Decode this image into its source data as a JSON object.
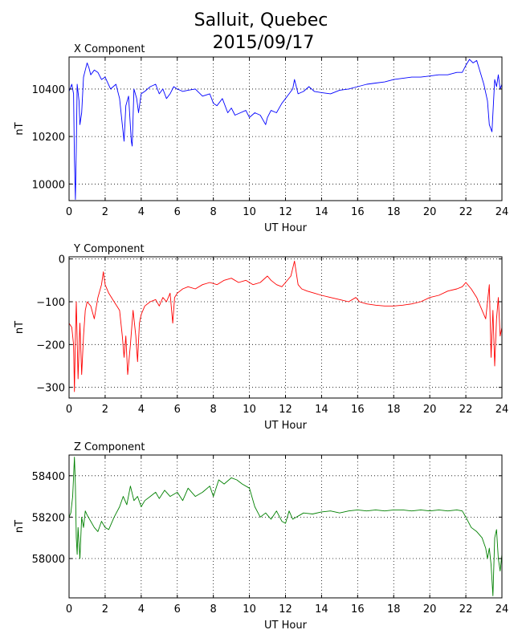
{
  "title_line1": "Salluit, Quebec",
  "title_line2": "2015/09/17",
  "chart_data": [
    {
      "type": "line",
      "title": "X Component",
      "xlabel": "UT Hour",
      "ylabel": "nT",
      "color": "#0000ff",
      "xlim": [
        0,
        24
      ],
      "ylim": [
        9930,
        10535
      ],
      "xticks": [
        0,
        2,
        4,
        6,
        8,
        10,
        12,
        14,
        16,
        18,
        20,
        22,
        24
      ],
      "yticks": [
        10000,
        10200,
        10400
      ],
      "grid": true,
      "x": [
        0,
        0.15,
        0.25,
        0.3,
        0.35,
        0.4,
        0.45,
        0.55,
        0.6,
        0.7,
        0.8,
        0.9,
        1.0,
        1.1,
        1.2,
        1.4,
        1.6,
        1.8,
        2.0,
        2.3,
        2.6,
        2.8,
        2.95,
        3.05,
        3.15,
        3.3,
        3.45,
        3.5,
        3.6,
        3.75,
        3.85,
        4.0,
        4.2,
        4.5,
        4.8,
        5.0,
        5.2,
        5.4,
        5.6,
        5.8,
        6.0,
        6.3,
        6.6,
        7.0,
        7.4,
        7.8,
        8.0,
        8.2,
        8.5,
        8.8,
        9.0,
        9.2,
        9.5,
        9.8,
        10.0,
        10.3,
        10.6,
        10.9,
        11.0,
        11.2,
        11.5,
        11.8,
        12.0,
        12.2,
        12.4,
        12.5,
        12.7,
        13.0,
        13.3,
        13.6,
        14.0,
        14.5,
        15.0,
        15.5,
        16.0,
        16.5,
        17.0,
        17.5,
        18.0,
        18.5,
        19.0,
        19.5,
        20.0,
        20.5,
        21.0,
        21.5,
        21.8,
        22.0,
        22.2,
        22.4,
        22.6,
        22.8,
        23.0,
        23.2,
        23.3,
        23.45,
        23.6,
        23.7,
        23.8,
        23.9,
        24.0
      ],
      "y": [
        10390,
        10420,
        10380,
        10100,
        9935,
        10150,
        10420,
        10350,
        10250,
        10300,
        10450,
        10480,
        10510,
        10490,
        10460,
        10480,
        10470,
        10440,
        10450,
        10400,
        10420,
        10360,
        10250,
        10180,
        10330,
        10370,
        10180,
        10160,
        10400,
        10360,
        10300,
        10380,
        10390,
        10410,
        10420,
        10380,
        10400,
        10360,
        10380,
        10410,
        10400,
        10390,
        10395,
        10400,
        10370,
        10380,
        10340,
        10330,
        10360,
        10300,
        10320,
        10290,
        10300,
        10310,
        10280,
        10300,
        10290,
        10250,
        10280,
        10310,
        10300,
        10340,
        10360,
        10380,
        10400,
        10440,
        10380,
        10390,
        10410,
        10390,
        10385,
        10380,
        10395,
        10400,
        10410,
        10420,
        10425,
        10430,
        10440,
        10445,
        10450,
        10450,
        10455,
        10460,
        10460,
        10470,
        10470,
        10500,
        10525,
        10510,
        10520,
        10470,
        10420,
        10350,
        10250,
        10220,
        10440,
        10410,
        10460,
        10400,
        10420
      ]
    },
    {
      "type": "line",
      "title": "Y Component",
      "xlabel": "UT Hour",
      "ylabel": "nT",
      "color": "#ff0000",
      "xlim": [
        0,
        24
      ],
      "ylim": [
        -325,
        5
      ],
      "xticks": [
        0,
        2,
        4,
        6,
        8,
        10,
        12,
        14,
        16,
        18,
        20,
        22,
        24
      ],
      "yticks": [
        -300,
        -200,
        -100,
        0
      ],
      "grid": true,
      "x": [
        0,
        0.15,
        0.25,
        0.3,
        0.35,
        0.4,
        0.5,
        0.6,
        0.7,
        0.8,
        0.9,
        1.0,
        1.2,
        1.4,
        1.6,
        1.8,
        1.9,
        2.0,
        2.2,
        2.5,
        2.8,
        2.95,
        3.05,
        3.15,
        3.25,
        3.4,
        3.55,
        3.7,
        3.8,
        3.9,
        4.0,
        4.2,
        4.5,
        4.8,
        5.0,
        5.2,
        5.4,
        5.6,
        5.75,
        5.85,
        6.0,
        6.3,
        6.6,
        7.0,
        7.4,
        7.8,
        8.2,
        8.6,
        9.0,
        9.4,
        9.8,
        10.2,
        10.6,
        11.0,
        11.2,
        11.5,
        11.8,
        12.0,
        12.3,
        12.5,
        12.7,
        12.9,
        13.2,
        13.6,
        14.0,
        14.5,
        15.0,
        15.5,
        15.9,
        16.1,
        16.5,
        17.0,
        17.5,
        18.0,
        18.5,
        19.0,
        19.5,
        20.0,
        20.5,
        21.0,
        21.5,
        21.8,
        22.0,
        22.3,
        22.6,
        22.9,
        23.1,
        23.3,
        23.4,
        23.5,
        23.6,
        23.7,
        23.8,
        23.9,
        24.0
      ],
      "y": [
        -150,
        -160,
        -200,
        -310,
        -180,
        -100,
        -280,
        -150,
        -270,
        -180,
        -120,
        -100,
        -110,
        -140,
        -90,
        -60,
        -30,
        -60,
        -80,
        -100,
        -120,
        -180,
        -230,
        -180,
        -270,
        -200,
        -120,
        -180,
        -240,
        -150,
        -130,
        -110,
        -100,
        -95,
        -110,
        -90,
        -100,
        -80,
        -150,
        -90,
        -80,
        -70,
        -65,
        -70,
        -60,
        -55,
        -60,
        -50,
        -45,
        -55,
        -50,
        -60,
        -55,
        -40,
        -50,
        -60,
        -65,
        -55,
        -40,
        -5,
        -60,
        -70,
        -75,
        -80,
        -85,
        -90,
        -95,
        -100,
        -90,
        -100,
        -105,
        -108,
        -110,
        -110,
        -108,
        -105,
        -100,
        -90,
        -85,
        -75,
        -70,
        -65,
        -55,
        -70,
        -90,
        -120,
        -140,
        -60,
        -230,
        -120,
        -250,
        -140,
        -90,
        -180,
        -160
      ]
    },
    {
      "type": "line",
      "title": "Z Component",
      "xlabel": "UT Hour",
      "ylabel": "nT",
      "color": "#008000",
      "xlim": [
        0,
        24
      ],
      "ylim": [
        57810,
        58500
      ],
      "xticks": [
        0,
        2,
        4,
        6,
        8,
        10,
        12,
        14,
        16,
        18,
        20,
        22,
        24
      ],
      "yticks": [
        58000,
        58200,
        58400
      ],
      "grid": true,
      "x": [
        0,
        0.1,
        0.2,
        0.3,
        0.35,
        0.4,
        0.45,
        0.5,
        0.6,
        0.7,
        0.8,
        0.9,
        1.0,
        1.2,
        1.4,
        1.6,
        1.8,
        2.0,
        2.2,
        2.5,
        2.8,
        3.0,
        3.2,
        3.4,
        3.6,
        3.8,
        4.0,
        4.2,
        4.5,
        4.8,
        5.0,
        5.3,
        5.6,
        6.0,
        6.3,
        6.6,
        7.0,
        7.4,
        7.8,
        8.0,
        8.3,
        8.6,
        9.0,
        9.3,
        9.6,
        10.0,
        10.3,
        10.6,
        10.9,
        11.2,
        11.5,
        11.8,
        12.0,
        12.2,
        12.4,
        12.6,
        12.8,
        13.0,
        13.5,
        14.0,
        14.5,
        15.0,
        15.5,
        16.0,
        16.5,
        17.0,
        17.5,
        18.0,
        18.5,
        19.0,
        19.5,
        20.0,
        20.5,
        21.0,
        21.5,
        21.8,
        22.0,
        22.3,
        22.6,
        22.9,
        23.1,
        23.2,
        23.3,
        23.4,
        23.5,
        23.6,
        23.7,
        23.8,
        23.9,
        24.0
      ],
      "y": [
        58200,
        58220,
        58300,
        58490,
        58350,
        58100,
        58020,
        58150,
        58000,
        58200,
        58150,
        58230,
        58210,
        58180,
        58150,
        58130,
        58180,
        58150,
        58140,
        58200,
        58250,
        58300,
        58260,
        58350,
        58280,
        58300,
        58250,
        58280,
        58300,
        58320,
        58290,
        58330,
        58300,
        58320,
        58280,
        58340,
        58300,
        58320,
        58350,
        58300,
        58380,
        58360,
        58390,
        58380,
        58360,
        58340,
        58250,
        58200,
        58220,
        58190,
        58230,
        58180,
        58170,
        58230,
        58190,
        58200,
        58210,
        58220,
        58215,
        58225,
        58230,
        58220,
        58230,
        58235,
        58230,
        58235,
        58230,
        58235,
        58235,
        58230,
        58235,
        58230,
        58235,
        58230,
        58235,
        58230,
        58200,
        58150,
        58130,
        58100,
        58050,
        58000,
        58050,
        57970,
        57820,
        58100,
        58140,
        58000,
        57940,
        58020
      ]
    }
  ]
}
